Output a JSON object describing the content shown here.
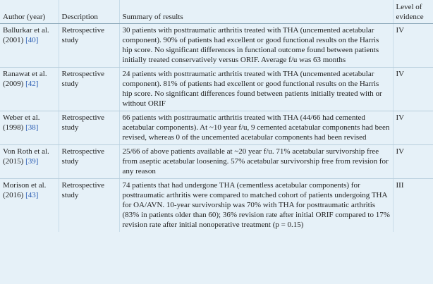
{
  "headers": {
    "author": "Author (year)",
    "description": "Description",
    "summary": "Summary of results",
    "level": "Level of evidence"
  },
  "rows": [
    {
      "author": "Ballurkar et al. (2001)",
      "ref": "[40]",
      "description": "Retrospective study",
      "summary": "30 patients with posttraumatic arthritis treated with THA (uncemented acetabular component). 90% of patients had excellent or good functional results on the Harris hip score. No significant differences in functional outcome found between patients initially treated conservatively versus ORIF. Average f/u was 63 months",
      "level": "IV"
    },
    {
      "author": "Ranawat et al. (2009)",
      "ref": "[42]",
      "description": "Retrospective study",
      "summary": "24 patients with posttraumatic arthritis treated with THA (uncemented acetabular component). 81% of patients had excellent or good functional results on the Harris hip score. No significant differences found between patients initially treated with or without ORIF",
      "level": "IV"
    },
    {
      "author": "Weber et al. (1998)",
      "ref": "[38]",
      "description": "Retrospective study",
      "summary": "66 patients with posttraumatic arthritis treated with THA (44/66 had cemented acetabular components). At ~10 year f/u, 9 cemented acetabular components had been revised, whereas 0 of the uncemented acetabular components had been revised",
      "level": "IV"
    },
    {
      "author": "Von Roth et al. (2015)",
      "ref": "[39]",
      "description": "Retrospective study",
      "summary": "25/66 of above patients available at ~20 year f/u. 71% acetabular survivorship free from aseptic acetabular loosening. 57% acetabular survivorship free from revision for any reason",
      "level": "IV"
    },
    {
      "author": "Morison et al. (2016)",
      "ref": "[43]",
      "description": "Retrospective study",
      "summary": "74 patients that had undergone THA (cementless acetabular components) for posttraumatic arthritis were compared to matched cohort of patients undergoing THA for OA/AVN. 10-year survivorship was 70% with THA for posttraumatic arthritis (83% in patients older than 60); 36% revision rate after initial ORIF compared to 17% revision rate after initial nonoperative treatment (p = 0.15)",
      "level": "III"
    }
  ]
}
